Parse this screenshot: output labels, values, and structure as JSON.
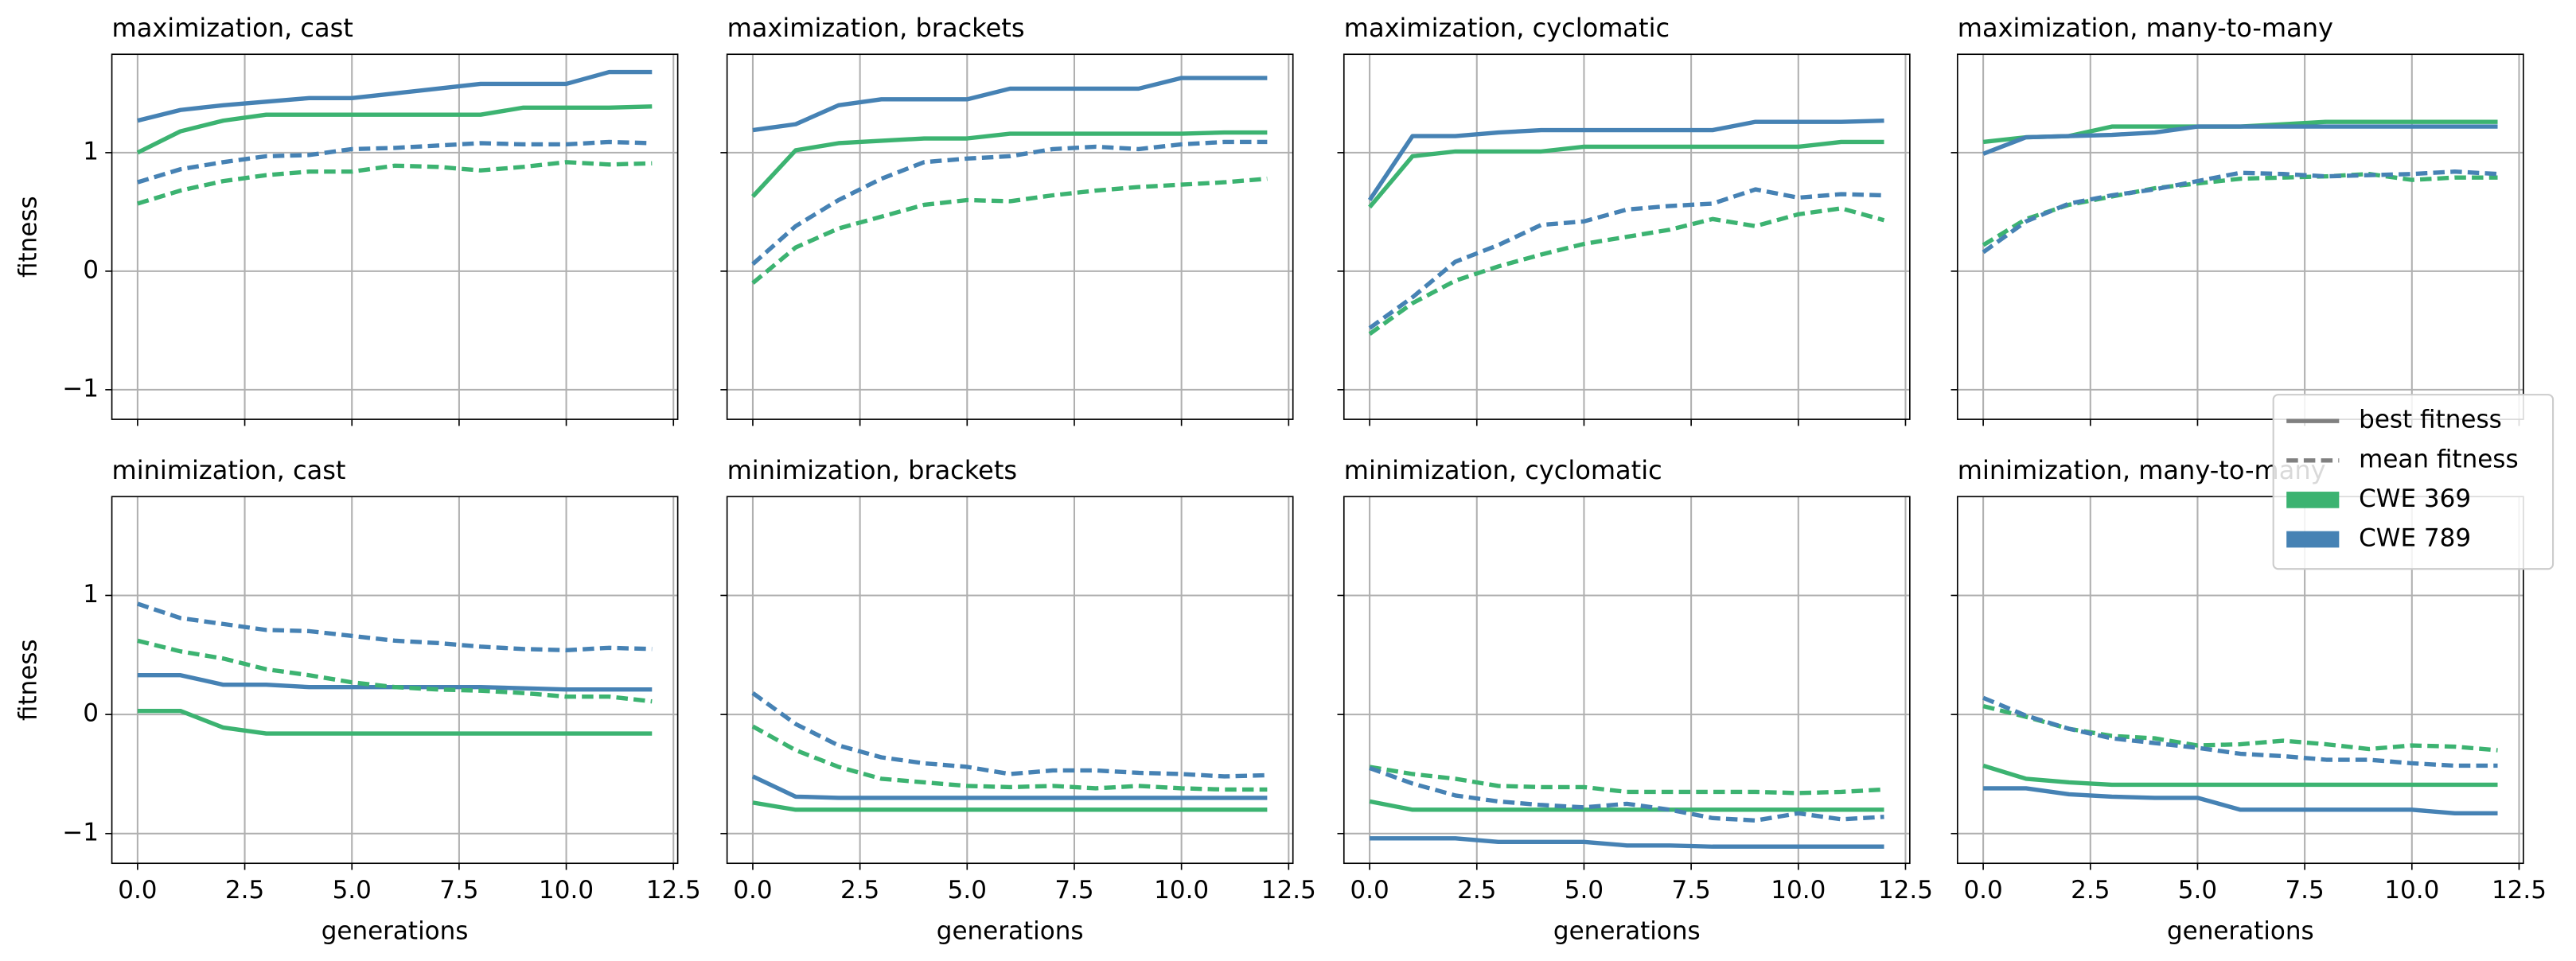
{
  "chart_data": {
    "type": "line",
    "x": [
      0,
      1,
      2,
      3,
      4,
      5,
      6,
      7,
      8,
      9,
      10,
      11,
      12
    ],
    "xlim": [
      -0.6,
      12.6
    ],
    "xticks": [
      {
        "value": 0,
        "label": "0.0"
      },
      {
        "value": 2.5,
        "label": "2.5"
      },
      {
        "value": 5,
        "label": "5.0"
      },
      {
        "value": 7.5,
        "label": "7.5"
      },
      {
        "value": 10,
        "label": "10.0"
      },
      {
        "value": 12.5,
        "label": "12.5"
      }
    ],
    "ylim": [
      -1.25,
      1.83
    ],
    "yticks": [
      {
        "value": -1,
        "label": "−1"
      },
      0,
      1
    ],
    "xlabel": "generations",
    "ylabel": "fitness",
    "grid": true,
    "series": [
      {
        "name": "CWE 369",
        "color": "#3cb371"
      },
      {
        "name": "CWE 789",
        "color": "#4682b4"
      }
    ],
    "line_styles": [
      {
        "label": "best fitness",
        "dash": "solid"
      },
      {
        "label": "mean fitness",
        "dash": "dashed"
      }
    ],
    "line_style_color": "#808080",
    "panels": [
      {
        "title": "maximization, cast",
        "values": [
          [
            [
              1.0,
              1.18,
              1.27,
              1.32,
              1.32,
              1.32,
              1.32,
              1.32,
              1.32,
              1.38,
              1.38,
              1.38,
              1.39
            ],
            [
              1.27,
              1.36,
              1.4,
              1.43,
              1.46,
              1.46,
              1.5,
              1.54,
              1.58,
              1.58,
              1.58,
              1.68,
              1.68
            ]
          ],
          [
            [
              0.57,
              0.68,
              0.76,
              0.81,
              0.84,
              0.84,
              0.89,
              0.88,
              0.85,
              0.88,
              0.92,
              0.9,
              0.91
            ],
            [
              0.75,
              0.86,
              0.92,
              0.97,
              0.98,
              1.03,
              1.04,
              1.06,
              1.08,
              1.07,
              1.07,
              1.09,
              1.08
            ]
          ]
        ]
      },
      {
        "title": "maximization, brackets",
        "values": [
          [
            [
              0.63,
              1.02,
              1.08,
              1.1,
              1.12,
              1.12,
              1.16,
              1.16,
              1.16,
              1.16,
              1.16,
              1.17,
              1.17
            ],
            [
              1.19,
              1.24,
              1.4,
              1.45,
              1.45,
              1.45,
              1.54,
              1.54,
              1.54,
              1.54,
              1.63,
              1.63,
              1.63
            ]
          ],
          [
            [
              -0.1,
              0.2,
              0.36,
              0.46,
              0.56,
              0.6,
              0.59,
              0.64,
              0.68,
              0.71,
              0.73,
              0.75,
              0.78
            ],
            [
              0.06,
              0.38,
              0.6,
              0.78,
              0.92,
              0.95,
              0.97,
              1.03,
              1.05,
              1.03,
              1.07,
              1.09,
              1.09
            ]
          ]
        ]
      },
      {
        "title": "maximization, cyclomatic",
        "values": [
          [
            [
              0.54,
              0.97,
              1.01,
              1.01,
              1.01,
              1.05,
              1.05,
              1.05,
              1.05,
              1.05,
              1.05,
              1.09,
              1.09
            ],
            [
              0.6,
              1.14,
              1.14,
              1.17,
              1.19,
              1.19,
              1.19,
              1.19,
              1.19,
              1.26,
              1.26,
              1.26,
              1.27
            ]
          ],
          [
            [
              -0.53,
              -0.27,
              -0.08,
              0.04,
              0.14,
              0.23,
              0.29,
              0.35,
              0.44,
              0.38,
              0.48,
              0.53,
              0.43
            ],
            [
              -0.48,
              -0.22,
              0.08,
              0.22,
              0.39,
              0.42,
              0.52,
              0.55,
              0.57,
              0.69,
              0.62,
              0.65,
              0.64
            ]
          ]
        ]
      },
      {
        "title": "maximization, many-to-many",
        "values": [
          [
            [
              1.09,
              1.13,
              1.14,
              1.22,
              1.22,
              1.22,
              1.22,
              1.24,
              1.26,
              1.26,
              1.26,
              1.26,
              1.26
            ],
            [
              0.99,
              1.13,
              1.14,
              1.15,
              1.17,
              1.22,
              1.22,
              1.22,
              1.22,
              1.22,
              1.22,
              1.22,
              1.22
            ]
          ],
          [
            [
              0.22,
              0.44,
              0.56,
              0.63,
              0.7,
              0.74,
              0.78,
              0.79,
              0.8,
              0.82,
              0.77,
              0.79,
              0.79
            ],
            [
              0.16,
              0.42,
              0.57,
              0.64,
              0.69,
              0.76,
              0.83,
              0.82,
              0.8,
              0.81,
              0.82,
              0.84,
              0.82
            ]
          ]
        ]
      },
      {
        "title": "minimization, cast",
        "values": [
          [
            [
              0.03,
              0.03,
              -0.11,
              -0.16,
              -0.16,
              -0.16,
              -0.16,
              -0.16,
              -0.16,
              -0.16,
              -0.16,
              -0.16,
              -0.16
            ],
            [
              0.33,
              0.33,
              0.25,
              0.25,
              0.23,
              0.23,
              0.23,
              0.23,
              0.23,
              0.22,
              0.21,
              0.21,
              0.21
            ]
          ],
          [
            [
              0.62,
              0.53,
              0.47,
              0.38,
              0.33,
              0.27,
              0.23,
              0.21,
              0.2,
              0.18,
              0.15,
              0.15,
              0.11
            ],
            [
              0.93,
              0.81,
              0.76,
              0.71,
              0.7,
              0.66,
              0.62,
              0.6,
              0.57,
              0.55,
              0.54,
              0.56,
              0.55
            ]
          ]
        ]
      },
      {
        "title": "minimization, brackets",
        "values": [
          [
            [
              -0.74,
              -0.8,
              -0.8,
              -0.8,
              -0.8,
              -0.8,
              -0.8,
              -0.8,
              -0.8,
              -0.8,
              -0.8,
              -0.8,
              -0.8
            ],
            [
              -0.52,
              -0.69,
              -0.7,
              -0.7,
              -0.7,
              -0.7,
              -0.7,
              -0.7,
              -0.7,
              -0.7,
              -0.7,
              -0.7,
              -0.7
            ]
          ],
          [
            [
              -0.1,
              -0.3,
              -0.44,
              -0.54,
              -0.57,
              -0.6,
              -0.61,
              -0.6,
              -0.62,
              -0.6,
              -0.62,
              -0.63,
              -0.63
            ],
            [
              0.18,
              -0.08,
              -0.26,
              -0.36,
              -0.41,
              -0.44,
              -0.5,
              -0.47,
              -0.47,
              -0.49,
              -0.5,
              -0.52,
              -0.51
            ]
          ]
        ]
      },
      {
        "title": "minimization, cyclomatic",
        "values": [
          [
            [
              -0.73,
              -0.8,
              -0.8,
              -0.8,
              -0.8,
              -0.8,
              -0.8,
              -0.8,
              -0.8,
              -0.8,
              -0.8,
              -0.8,
              -0.8
            ],
            [
              -1.04,
              -1.04,
              -1.04,
              -1.07,
              -1.07,
              -1.07,
              -1.1,
              -1.1,
              -1.11,
              -1.11,
              -1.11,
              -1.11,
              -1.11
            ]
          ],
          [
            [
              -0.44,
              -0.5,
              -0.54,
              -0.6,
              -0.61,
              -0.61,
              -0.65,
              -0.65,
              -0.65,
              -0.65,
              -0.66,
              -0.65,
              -0.63
            ],
            [
              -0.45,
              -0.58,
              -0.68,
              -0.73,
              -0.76,
              -0.78,
              -0.75,
              -0.8,
              -0.87,
              -0.89,
              -0.83,
              -0.88,
              -0.86
            ]
          ]
        ]
      },
      {
        "title": "minimization, many-to-many",
        "values": [
          [
            [
              -0.43,
              -0.54,
              -0.57,
              -0.59,
              -0.59,
              -0.59,
              -0.59,
              -0.59,
              -0.59,
              -0.59,
              -0.59,
              -0.59,
              -0.59
            ],
            [
              -0.62,
              -0.62,
              -0.67,
              -0.69,
              -0.7,
              -0.7,
              -0.8,
              -0.8,
              -0.8,
              -0.8,
              -0.8,
              -0.83,
              -0.83
            ]
          ],
          [
            [
              0.07,
              -0.02,
              -0.12,
              -0.18,
              -0.2,
              -0.26,
              -0.25,
              -0.22,
              -0.25,
              -0.29,
              -0.26,
              -0.27,
              -0.3
            ],
            [
              0.14,
              -0.01,
              -0.12,
              -0.2,
              -0.24,
              -0.28,
              -0.33,
              -0.35,
              -0.38,
              -0.38,
              -0.41,
              -0.43,
              -0.43
            ]
          ]
        ]
      }
    ]
  }
}
